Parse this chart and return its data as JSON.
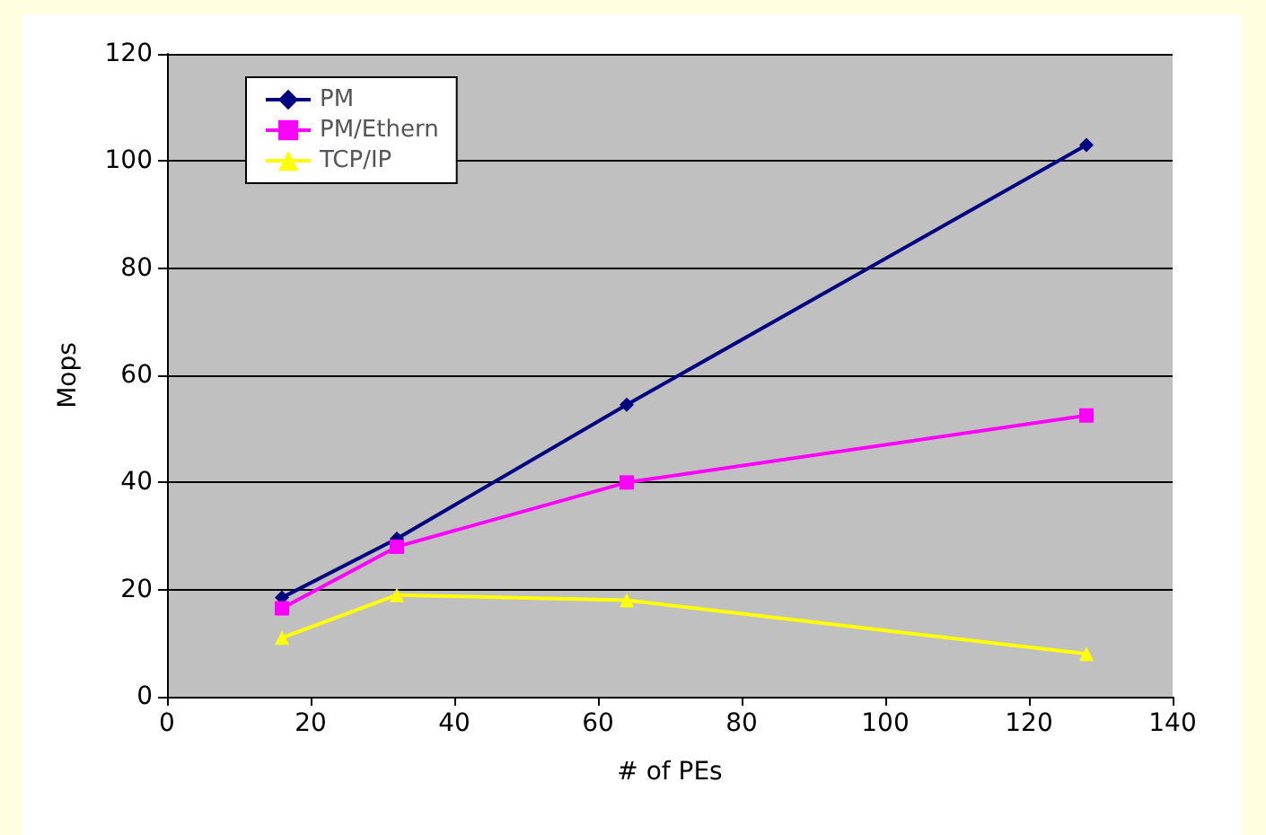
{
  "chart_data": {
    "type": "line",
    "xlabel": "# of PEs",
    "ylabel": "Mops",
    "x": [
      16,
      32,
      64,
      128
    ],
    "series": [
      {
        "name": "PM",
        "color": "#000080",
        "marker": "diamond",
        "values": [
          18.5,
          29.5,
          54.5,
          103
        ]
      },
      {
        "name": "PM/Ethern",
        "color": "#ff00ff",
        "marker": "square",
        "values": [
          16.5,
          28,
          40,
          52.5
        ]
      },
      {
        "name": "TCP/IP",
        "color": "#ffff00",
        "marker": "triangle",
        "values": [
          11,
          19,
          18,
          8
        ]
      }
    ],
    "xlim": [
      0,
      140
    ],
    "xticks": [
      0,
      20,
      40,
      60,
      80,
      100,
      120,
      140
    ],
    "ylim": [
      0,
      120
    ],
    "yticks": [
      0,
      20,
      40,
      60,
      80,
      100,
      120
    ],
    "grid": "y",
    "legend": "top left"
  }
}
